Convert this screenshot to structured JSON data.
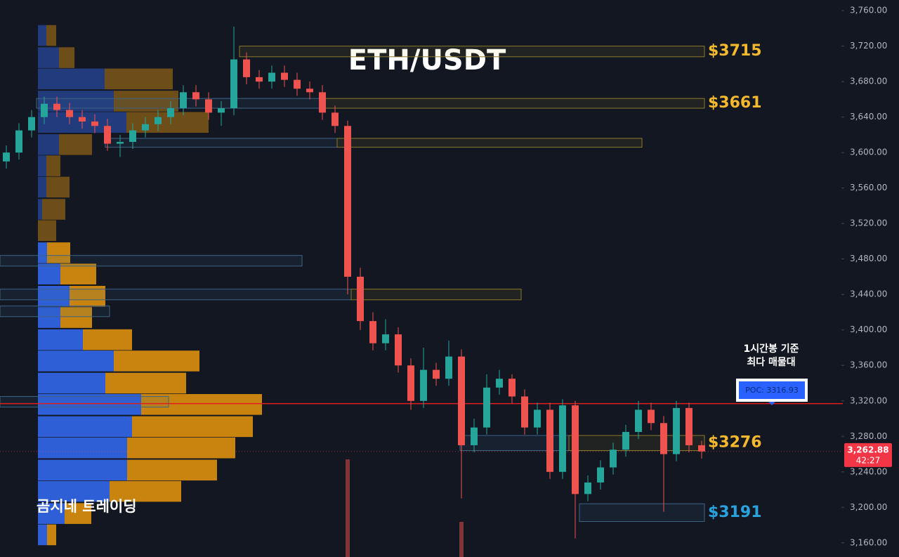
{
  "chart_data": {
    "type": "candlestick",
    "title": "ETH/USDT",
    "up_color": "#26a69a",
    "down_color": "#ef5350",
    "open": [
      3590,
      3600,
      3625,
      3640,
      3655,
      3648,
      3640,
      3635,
      3630,
      3610,
      3612,
      3625,
      3632,
      3640,
      3650,
      3668,
      3660,
      3645,
      3650,
      3705,
      3685,
      3680,
      3690,
      3682,
      3672,
      3668,
      3645,
      3630,
      3460,
      3410,
      3385,
      3395,
      3360,
      3320,
      3355,
      3345,
      3370,
      3270,
      3290,
      3335,
      3345,
      3325,
      3290,
      3310,
      3240,
      3315,
      3215,
      3228,
      3245,
      3265,
      3285,
      3310,
      3295,
      3260,
      3312,
      3270
    ],
    "high": [
      3608,
      3633,
      3648,
      3663,
      3663,
      3656,
      3648,
      3643,
      3638,
      3620,
      3633,
      3640,
      3648,
      3658,
      3676,
      3676,
      3668,
      3658,
      3742,
      3713,
      3693,
      3698,
      3698,
      3690,
      3680,
      3676,
      3653,
      3636,
      3470,
      3420,
      3412,
      3403,
      3368,
      3380,
      3363,
      3388,
      3378,
      3300,
      3350,
      3355,
      3350,
      3333,
      3318,
      3318,
      3322,
      3320,
      3236,
      3253,
      3273,
      3293,
      3320,
      3318,
      3303,
      3320,
      3318,
      3275
    ],
    "low": [
      3582,
      3592,
      3617,
      3632,
      3640,
      3632,
      3627,
      3622,
      3602,
      3595,
      3604,
      3617,
      3624,
      3632,
      3642,
      3652,
      3637,
      3630,
      3642,
      3677,
      3672,
      3672,
      3674,
      3664,
      3660,
      3637,
      3622,
      3440,
      3400,
      3377,
      3377,
      3352,
      3310,
      3312,
      3337,
      3337,
      3210,
      3262,
      3282,
      3327,
      3317,
      3282,
      3282,
      3232,
      3232,
      3165,
      3207,
      3220,
      3237,
      3257,
      3277,
      3287,
      3195,
      3252,
      3262,
      3255
    ],
    "close": [
      3600,
      3625,
      3640,
      3655,
      3648,
      3640,
      3635,
      3630,
      3610,
      3612,
      3625,
      3632,
      3640,
      3650,
      3668,
      3660,
      3645,
      3650,
      3705,
      3685,
      3680,
      3690,
      3682,
      3672,
      3668,
      3645,
      3630,
      3460,
      3410,
      3385,
      3395,
      3360,
      3320,
      3355,
      3345,
      3370,
      3270,
      3290,
      3335,
      3345,
      3325,
      3290,
      3310,
      3240,
      3315,
      3215,
      3228,
      3245,
      3265,
      3285,
      3310,
      3295,
      3260,
      3312,
      3270,
      3263
    ],
    "ylim": [
      3144,
      3772
    ],
    "yticks": [
      {
        "value": 3160,
        "label": "3,160.00"
      },
      {
        "value": 3200,
        "label": "3,200.00"
      },
      {
        "value": 3240,
        "label": "3,240.00"
      },
      {
        "value": 3280,
        "label": "3,280.00"
      },
      {
        "value": 3320,
        "label": "3,320.00"
      },
      {
        "value": 3360,
        "label": "3,360.00"
      },
      {
        "value": 3400,
        "label": "3,400.00"
      },
      {
        "value": 3440,
        "label": "3,440.00"
      },
      {
        "value": 3480,
        "label": "3,480.00"
      },
      {
        "value": 3520,
        "label": "3,520.00"
      },
      {
        "value": 3560,
        "label": "3,560.00"
      },
      {
        "value": 3600,
        "label": "3,600.00"
      },
      {
        "value": 3640,
        "label": "3,640.00"
      },
      {
        "value": 3680,
        "label": "3,680.00"
      },
      {
        "value": 3720,
        "label": "3,720.00"
      },
      {
        "value": 3760,
        "label": "3,760.00"
      }
    ],
    "volume_profile": {
      "buy_color": "#2f5fd6",
      "sell_color": "#c8840e",
      "levels": [
        3732,
        3707,
        3683,
        3658,
        3634,
        3609,
        3585,
        3561,
        3536,
        3512,
        3487,
        3463,
        3438,
        3414,
        3389,
        3365,
        3340,
        3316,
        3291,
        3267,
        3242,
        3218,
        3193,
        3169
      ],
      "buy": [
        12,
        30,
        95,
        108,
        126,
        30,
        12,
        12,
        6,
        0,
        13,
        32,
        45,
        32,
        64,
        108,
        96,
        147,
        134,
        127,
        127,
        102,
        38,
        13
      ],
      "sell": [
        14,
        22,
        97,
        92,
        117,
        47,
        20,
        33,
        33,
        26,
        33,
        51,
        51,
        45,
        70,
        122,
        115,
        172,
        172,
        154,
        128,
        102,
        38,
        13
      ]
    },
    "zones": [
      {
        "low": 3708,
        "high": 3720,
        "label": "$3715",
        "label_color": "#f5b92e"
      },
      {
        "low": 3650,
        "high": 3661,
        "label": "$3661",
        "label_color": "#f5b92e"
      },
      {
        "low": 3606,
        "high": 3616
      },
      {
        "low": 3472,
        "high": 3484
      },
      {
        "low": 3434,
        "high": 3446
      },
      {
        "low": 3415,
        "high": 3427
      },
      {
        "low": 3313,
        "high": 3325
      },
      {
        "low": 3264,
        "high": 3281,
        "label": "$3276",
        "label_color": "#f5b92e"
      },
      {
        "low": 3184,
        "high": 3204,
        "label": "$3191",
        "label_color": "#29a3e0"
      }
    ],
    "poc": {
      "value": 3316.93,
      "label": "POC: 3316.93",
      "color": "#e01e1e"
    },
    "last_price": {
      "value": 3262.88,
      "label": "3,262.88",
      "countdown": "42:27"
    },
    "volume_spikes": [
      {
        "index": 27,
        "value": 139
      },
      {
        "index": 36,
        "value": 50
      }
    ],
    "annotation": [
      "1시간봉 기준",
      "최다 매물대"
    ],
    "watermark": "곰지네 트레이딩"
  }
}
